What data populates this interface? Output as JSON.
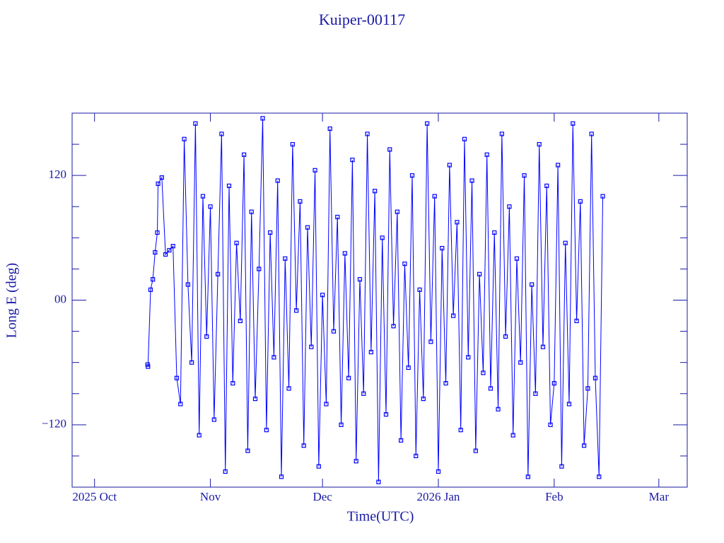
{
  "chart_data": {
    "type": "line",
    "title": "Kuiper-00117",
    "x_label": "Time(UTC)",
    "y_label": "Long E (deg)",
    "xlim": [
      -6,
      158.6
    ],
    "ylim": [
      -180,
      180
    ],
    "xticks": [
      {
        "value": 0,
        "label": "2025 Oct"
      },
      {
        "value": 31,
        "label": "Nov"
      },
      {
        "value": 61,
        "label": "Dec"
      },
      {
        "value": 92,
        "label": "2026 Jan"
      },
      {
        "value": 123,
        "label": "Feb"
      },
      {
        "value": 151,
        "label": "Mar"
      }
    ],
    "yticks": [
      {
        "value": -120,
        "label": "−120"
      },
      {
        "value": 0,
        "label": "00"
      },
      120
    ],
    "yminorticks": [
      -150,
      -90,
      -60,
      -30,
      30,
      60,
      90,
      150
    ],
    "markers": true,
    "series": [
      {
        "color": "#0000ff",
        "x": [
          14.2,
          14.3,
          15,
          15.6,
          16.2,
          16.8,
          17,
          18,
          19,
          20,
          21,
          22,
          23,
          24,
          25,
          26,
          27,
          28,
          29,
          30,
          31,
          32,
          33,
          34,
          35,
          36,
          37,
          38,
          39,
          40,
          41,
          42,
          43,
          44,
          45,
          46,
          47,
          48,
          49,
          50,
          51,
          52,
          53,
          54,
          55,
          56,
          57,
          58,
          59,
          60,
          61,
          62,
          63,
          64,
          65,
          66,
          67,
          68,
          69,
          70,
          71,
          72,
          73,
          74,
          75,
          76,
          77,
          78,
          79,
          80,
          81,
          82,
          83,
          84,
          85,
          86,
          87,
          88,
          89,
          90,
          91,
          92,
          93,
          94,
          95,
          96,
          97,
          98,
          99,
          100,
          101,
          102,
          103,
          104,
          105,
          106,
          107,
          108,
          109,
          110,
          111,
          112,
          113,
          114,
          115,
          116,
          117,
          118,
          119,
          120,
          121,
          122,
          123,
          124,
          125,
          126,
          127,
          128,
          129,
          130,
          131,
          132,
          133,
          134,
          135,
          136
        ],
        "values": [
          -62,
          -64,
          10,
          20,
          46,
          65,
          112,
          118,
          44,
          48,
          52,
          -75,
          -100,
          155,
          15,
          -60,
          170,
          -130,
          100,
          -35,
          90,
          -115,
          25,
          160,
          -165,
          110,
          -80,
          55,
          -20,
          140,
          -145,
          85,
          -95,
          30,
          175,
          -125,
          65,
          -55,
          115,
          -170,
          40,
          -85,
          150,
          -10,
          95,
          -140,
          70,
          -45,
          125,
          -160,
          5,
          -100,
          165,
          -30,
          80,
          -120,
          45,
          -75,
          135,
          -155,
          20,
          -90,
          160,
          -50,
          105,
          -175,
          60,
          -110,
          145,
          -25,
          85,
          -135,
          35,
          -65,
          120,
          -150,
          10,
          -95,
          170,
          -40,
          100,
          -165,
          50,
          -80,
          130,
          -15,
          75,
          -125,
          155,
          -55,
          115,
          -145,
          25,
          -70,
          140,
          -85,
          65,
          -105,
          160,
          -35,
          90,
          -130,
          40,
          -60,
          120,
          -170,
          15,
          -90,
          150,
          -45,
          110,
          -120,
          -80,
          130,
          -160,
          55,
          -100,
          170,
          -20,
          95,
          -140,
          -85,
          160,
          -75,
          -170,
          100
        ]
      }
    ]
  }
}
